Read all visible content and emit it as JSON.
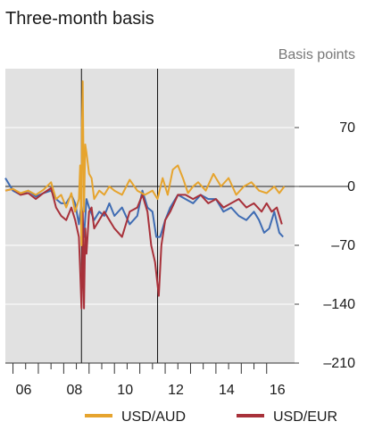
{
  "chart_data": {
    "type": "line",
    "title": "Three-month basis",
    "ylabel": "Basis points",
    "ylim": [
      -210,
      140
    ],
    "xlim": [
      2005.7,
      2017.1
    ],
    "yticks": [
      70,
      0,
      -70,
      -140,
      -210
    ],
    "ytick_labels": [
      "70",
      "0",
      "–70",
      "–140",
      "–210"
    ],
    "xticks": [
      2006,
      2008,
      2010,
      2012,
      2014,
      2016
    ],
    "xtick_labels": [
      "06",
      "08",
      "10",
      "12",
      "14",
      "16"
    ],
    "vlines": [
      2008.7,
      2011.7
    ],
    "legend_position": "bottom",
    "colors": {
      "background": "#e1e1e1",
      "USD/AUD": "#e6a42e",
      "USD/EUR": "#a8313a",
      "blue": "#3f6cb3"
    },
    "series": [
      {
        "name": "USD/AUD",
        "x": [
          2005.7,
          2006.0,
          2006.3,
          2006.6,
          2006.9,
          2007.2,
          2007.5,
          2007.7,
          2007.9,
          2008.1,
          2008.3,
          2008.45,
          2008.6,
          2008.65,
          2008.7,
          2008.72,
          2008.75,
          2008.8,
          2008.85,
          2008.9,
          2009.0,
          2009.1,
          2009.2,
          2009.4,
          2009.6,
          2009.8,
          2010.0,
          2010.3,
          2010.6,
          2010.9,
          2011.2,
          2011.5,
          2011.7,
          2011.9,
          2012.1,
          2012.3,
          2012.5,
          2012.7,
          2012.9,
          2013.1,
          2013.3,
          2013.6,
          2013.9,
          2014.2,
          2014.5,
          2014.8,
          2015.1,
          2015.4,
          2015.7,
          2016.0,
          2016.3,
          2016.5,
          2016.7
        ],
        "y": [
          -5,
          -3,
          -8,
          -5,
          -10,
          -4,
          5,
          -15,
          -10,
          -25,
          -8,
          -30,
          -15,
          25,
          -70,
          65,
          125,
          -30,
          50,
          40,
          15,
          10,
          -15,
          -5,
          -10,
          0,
          -5,
          -10,
          8,
          -5,
          -10,
          -5,
          -15,
          10,
          -10,
          20,
          25,
          10,
          -8,
          0,
          5,
          -5,
          15,
          0,
          10,
          -10,
          0,
          5,
          -5,
          -8,
          0,
          -8,
          0
        ]
      },
      {
        "name": "USD/EUR",
        "x": [
          2005.7,
          2006.0,
          2006.3,
          2006.6,
          2006.9,
          2007.2,
          2007.5,
          2007.7,
          2007.9,
          2008.1,
          2008.3,
          2008.45,
          2008.6,
          2008.65,
          2008.7,
          2008.72,
          2008.75,
          2008.8,
          2008.85,
          2008.9,
          2009.0,
          2009.1,
          2009.2,
          2009.4,
          2009.6,
          2009.8,
          2010.0,
          2010.3,
          2010.6,
          2010.9,
          2011.1,
          2011.3,
          2011.45,
          2011.6,
          2011.75,
          2011.85,
          2012.0,
          2012.2,
          2012.5,
          2012.8,
          2013.1,
          2013.4,
          2013.7,
          2014.0,
          2014.3,
          2014.6,
          2014.9,
          2015.2,
          2015.5,
          2015.8,
          2016.0,
          2016.2,
          2016.4,
          2016.6
        ],
        "y": [
          -5,
          -3,
          -10,
          -8,
          -15,
          -8,
          -2,
          -25,
          -35,
          -40,
          -25,
          -40,
          -60,
          -100,
          -145,
          -120,
          -30,
          -145,
          -50,
          -80,
          -30,
          -25,
          -50,
          -40,
          -30,
          -40,
          -50,
          -60,
          -30,
          -25,
          -10,
          -30,
          -70,
          -90,
          -130,
          -70,
          -40,
          -30,
          -10,
          -10,
          -15,
          -10,
          -20,
          -15,
          -25,
          -20,
          -15,
          -25,
          -20,
          -30,
          -20,
          -30,
          -25,
          -45
        ]
      },
      {
        "x": [
          2005.7,
          2006.0,
          2006.3,
          2006.6,
          2006.9,
          2007.2,
          2007.5,
          2007.7,
          2007.9,
          2008.1,
          2008.3,
          2008.45,
          2008.6,
          2008.7,
          2008.8,
          2008.9,
          2009.0,
          2009.2,
          2009.4,
          2009.6,
          2009.8,
          2010.0,
          2010.3,
          2010.6,
          2010.9,
          2011.1,
          2011.3,
          2011.5,
          2011.65,
          2011.8,
          2012.0,
          2012.2,
          2012.5,
          2012.8,
          2013.1,
          2013.4,
          2013.7,
          2014.0,
          2014.3,
          2014.6,
          2014.9,
          2015.2,
          2015.5,
          2015.7,
          2015.9,
          2016.1,
          2016.3,
          2016.5,
          2016.65
        ],
        "y": [
          10,
          -5,
          -10,
          -5,
          -12,
          -8,
          -5,
          -15,
          -20,
          -20,
          -10,
          -20,
          -45,
          -20,
          -60,
          -15,
          -25,
          -40,
          -30,
          -35,
          -20,
          -35,
          -25,
          -45,
          -35,
          -5,
          -25,
          -30,
          -60,
          -60,
          -40,
          -25,
          -10,
          -15,
          -20,
          -10,
          -15,
          -15,
          -30,
          -25,
          -35,
          -40,
          -30,
          -40,
          -55,
          -50,
          -30,
          -55,
          -60
        ]
      }
    ]
  }
}
